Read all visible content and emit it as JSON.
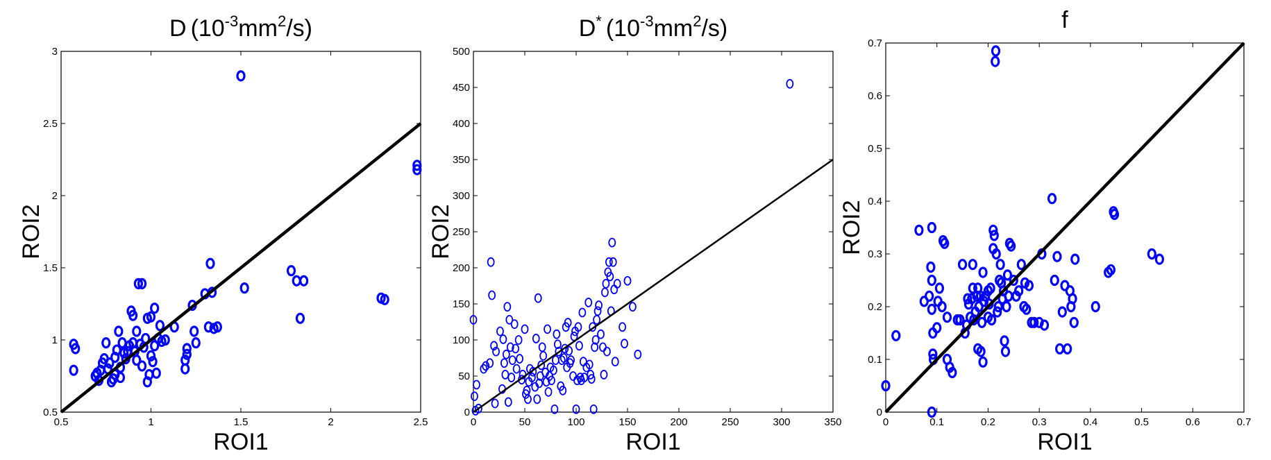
{
  "colors": {
    "points": "#0000ff",
    "line": "#000000"
  },
  "chart_data": [
    {
      "type": "scatter",
      "title": {
        "main": "D",
        "pre": "(10",
        "sup1": "-3",
        "mid": "mm",
        "sup2": "2",
        "post": "/s)"
      },
      "xlabel": "ROI1",
      "ylabel": "ROI2",
      "xlim": [
        0.5,
        2.5
      ],
      "ylim": [
        0.5,
        3
      ],
      "xticks": [
        "0.5",
        "1",
        "1.5",
        "2",
        "2.5"
      ],
      "xtick_values": [
        0.5,
        1,
        1.5,
        2,
        2.5
      ],
      "yticks": [
        "0.5",
        "1",
        "1.5",
        "2",
        "2.5",
        "3"
      ],
      "ytick_values": [
        0.5,
        1,
        1.5,
        2,
        2.5,
        3
      ],
      "identity_line": [
        [
          0.5,
          0.5
        ],
        [
          2.5,
          2.5
        ]
      ],
      "marker": "bold-circle",
      "points": [
        [
          0.57,
          0.97
        ],
        [
          0.58,
          0.94
        ],
        [
          0.57,
          0.79
        ],
        [
          0.69,
          0.75
        ],
        [
          0.7,
          0.77
        ],
        [
          0.71,
          0.72
        ],
        [
          0.72,
          0.79
        ],
        [
          0.73,
          0.84
        ],
        [
          0.74,
          0.87
        ],
        [
          0.75,
          0.98
        ],
        [
          0.76,
          0.8
        ],
        [
          0.77,
          0.84
        ],
        [
          0.78,
          0.71
        ],
        [
          0.79,
          0.73
        ],
        [
          0.8,
          0.76
        ],
        [
          0.8,
          0.88
        ],
        [
          0.81,
          0.93
        ],
        [
          0.82,
          1.06
        ],
        [
          0.83,
          0.81
        ],
        [
          0.83,
          0.74
        ],
        [
          0.84,
          0.98
        ],
        [
          0.85,
          0.91
        ],
        [
          0.86,
          0.87
        ],
        [
          0.87,
          0.92
        ],
        [
          0.88,
          0.96
        ],
        [
          0.89,
          1.2
        ],
        [
          0.9,
          1.17
        ],
        [
          0.9,
          0.98
        ],
        [
          0.91,
          0.92
        ],
        [
          0.92,
          1.06
        ],
        [
          0.92,
          0.86
        ],
        [
          0.93,
          1.39
        ],
        [
          0.94,
          0.97
        ],
        [
          0.95,
          1.39
        ],
        [
          0.95,
          0.82
        ],
        [
          0.96,
          0.95
        ],
        [
          0.97,
          1.01
        ],
        [
          0.98,
          1.15
        ],
        [
          0.98,
          0.71
        ],
        [
          0.99,
          0.76
        ],
        [
          1.0,
          1.16
        ],
        [
          1.0,
          0.89
        ],
        [
          1.01,
          0.85
        ],
        [
          1.02,
          0.96
        ],
        [
          1.02,
          1.22
        ],
        [
          1.03,
          0.77
        ],
        [
          1.04,
          1.01
        ],
        [
          1.05,
          1.1
        ],
        [
          1.06,
          0.99
        ],
        [
          1.08,
          1.0
        ],
        [
          1.13,
          1.09
        ],
        [
          1.19,
          0.8
        ],
        [
          1.19,
          0.86
        ],
        [
          1.2,
          0.94
        ],
        [
          1.2,
          0.9
        ],
        [
          1.23,
          1.24
        ],
        [
          1.24,
          1.06
        ],
        [
          1.25,
          0.98
        ],
        [
          1.3,
          1.32
        ],
        [
          1.32,
          1.09
        ],
        [
          1.33,
          1.53
        ],
        [
          1.34,
          1.33
        ],
        [
          1.35,
          1.08
        ],
        [
          1.37,
          1.09
        ],
        [
          1.5,
          2.83
        ],
        [
          1.52,
          1.36
        ],
        [
          1.78,
          1.48
        ],
        [
          1.81,
          1.41
        ],
        [
          1.83,
          1.15
        ],
        [
          1.85,
          1.41
        ],
        [
          2.28,
          1.29
        ],
        [
          2.3,
          1.28
        ],
        [
          2.48,
          2.21
        ],
        [
          2.48,
          2.18
        ]
      ]
    },
    {
      "type": "scatter",
      "title": {
        "main": "D",
        "star": "*",
        "pre": "(10",
        "sup1": "-3",
        "mid": "mm",
        "sup2": "2",
        "post": "/s)"
      },
      "xlabel": "ROI1",
      "ylabel": "ROI2",
      "xlim": [
        0,
        350
      ],
      "ylim": [
        0,
        500
      ],
      "xticks": [
        "0",
        "50",
        "100",
        "150",
        "200",
        "250",
        "300",
        "350"
      ],
      "xtick_values": [
        0,
        50,
        100,
        150,
        200,
        250,
        300,
        350
      ],
      "yticks": [
        "0",
        "50",
        "100",
        "150",
        "200",
        "250",
        "300",
        "350",
        "400",
        "450",
        "500"
      ],
      "ytick_values": [
        0,
        50,
        100,
        150,
        200,
        250,
        300,
        350,
        400,
        450,
        500
      ],
      "identity_line": [
        [
          0,
          0
        ],
        [
          350,
          350
        ]
      ],
      "marker": "thin-circle",
      "points": [
        [
          0,
          128
        ],
        [
          1,
          22
        ],
        [
          2,
          2
        ],
        [
          3,
          38
        ],
        [
          5,
          5
        ],
        [
          10,
          60
        ],
        [
          12,
          64
        ],
        [
          16,
          68
        ],
        [
          17,
          208
        ],
        [
          18,
          162
        ],
        [
          20,
          92
        ],
        [
          21,
          12
        ],
        [
          22,
          84
        ],
        [
          26,
          112
        ],
        [
          28,
          32
        ],
        [
          29,
          101
        ],
        [
          30,
          68
        ],
        [
          31,
          52
        ],
        [
          32,
          80
        ],
        [
          33,
          146
        ],
        [
          34,
          14
        ],
        [
          35,
          128
        ],
        [
          36,
          90
        ],
        [
          37,
          48
        ],
        [
          38,
          72
        ],
        [
          40,
          122
        ],
        [
          41,
          88
        ],
        [
          42,
          60
        ],
        [
          44,
          100
        ],
        [
          45,
          74
        ],
        [
          47,
          45
        ],
        [
          48,
          52
        ],
        [
          50,
          115
        ],
        [
          51,
          25
        ],
        [
          52,
          30
        ],
        [
          53,
          18
        ],
        [
          54,
          42
        ],
        [
          55,
          60
        ],
        [
          57,
          48
        ],
        [
          58,
          56
        ],
        [
          60,
          35
        ],
        [
          61,
          102
        ],
        [
          62,
          18
        ],
        [
          63,
          158
        ],
        [
          64,
          40
        ],
        [
          65,
          50
        ],
        [
          66,
          65
        ],
        [
          67,
          90
        ],
        [
          68,
          78
        ],
        [
          70,
          55
        ],
        [
          71,
          42
        ],
        [
          72,
          115
        ],
        [
          73,
          28
        ],
        [
          74,
          50
        ],
        [
          75,
          62
        ],
        [
          76,
          44
        ],
        [
          78,
          58
        ],
        [
          79,
          4
        ],
        [
          80,
          72
        ],
        [
          81,
          108
        ],
        [
          82,
          94
        ],
        [
          83,
          84
        ],
        [
          85,
          36
        ],
        [
          86,
          72
        ],
        [
          87,
          30
        ],
        [
          88,
          75
        ],
        [
          89,
          88
        ],
        [
          90,
          118
        ],
        [
          91,
          62
        ],
        [
          92,
          124
        ],
        [
          93,
          85
        ],
        [
          94,
          68
        ],
        [
          95,
          72
        ],
        [
          97,
          50
        ],
        [
          98,
          105
        ],
        [
          99,
          112
        ],
        [
          100,
          4
        ],
        [
          101,
          44
        ],
        [
          102,
          118
        ],
        [
          103,
          92
        ],
        [
          104,
          48
        ],
        [
          105,
          44
        ],
        [
          106,
          138
        ],
        [
          107,
          70
        ],
        [
          108,
          48
        ],
        [
          110,
          62
        ],
        [
          112,
          152
        ],
        [
          113,
          66
        ],
        [
          114,
          52
        ],
        [
          115,
          46
        ],
        [
          116,
          118
        ],
        [
          117,
          4
        ],
        [
          118,
          90
        ],
        [
          119,
          100
        ],
        [
          120,
          128
        ],
        [
          121,
          140
        ],
        [
          122,
          148
        ],
        [
          124,
          108
        ],
        [
          126,
          90
        ],
        [
          127,
          52
        ],
        [
          128,
          166
        ],
        [
          129,
          178
        ],
        [
          130,
          84
        ],
        [
          131,
          194
        ],
        [
          132,
          208
        ],
        [
          133,
          188
        ],
        [
          134,
          140
        ],
        [
          135,
          235
        ],
        [
          136,
          208
        ],
        [
          137,
          170
        ],
        [
          138,
          70
        ],
        [
          140,
          178
        ],
        [
          145,
          118
        ],
        [
          147,
          95
        ],
        [
          150,
          182
        ],
        [
          155,
          146
        ],
        [
          160,
          80
        ],
        [
          308,
          455
        ]
      ]
    },
    {
      "type": "scatter",
      "title": {
        "main": "f"
      },
      "xlabel": "ROI1",
      "ylabel": "ROI2",
      "xlim": [
        0,
        0.7
      ],
      "ylim": [
        0,
        0.7
      ],
      "xticks": [
        "0",
        "0.1",
        "0.2",
        "0.3",
        "0.4",
        "0.5",
        "0.6",
        "0.7"
      ],
      "xtick_values": [
        0,
        0.1,
        0.2,
        0.3,
        0.4,
        0.5,
        0.6,
        0.7
      ],
      "yticks": [
        "0",
        "0.1",
        "0.2",
        "0.3",
        "0.4",
        "0.5",
        "0.6",
        "0.7"
      ],
      "ytick_values": [
        0,
        0.1,
        0.2,
        0.3,
        0.4,
        0.5,
        0.6,
        0.7
      ],
      "identity_line": [
        [
          0,
          0
        ],
        [
          0.7,
          0.7
        ]
      ],
      "marker": "bold-circle",
      "points": [
        [
          0.0,
          0.05
        ],
        [
          0.02,
          0.145
        ],
        [
          0.065,
          0.345
        ],
        [
          0.075,
          0.21
        ],
        [
          0.085,
          0.22
        ],
        [
          0.088,
          0.275
        ],
        [
          0.09,
          0.35
        ],
        [
          0.09,
          0.25
        ],
        [
          0.09,
          0.195
        ],
        [
          0.092,
          0.15
        ],
        [
          0.092,
          0.11
        ],
        [
          0.093,
          0.1
        ],
        [
          0.09,
          0.0
        ],
        [
          0.1,
          0.16
        ],
        [
          0.102,
          0.21
        ],
        [
          0.105,
          0.235
        ],
        [
          0.11,
          0.2
        ],
        [
          0.112,
          0.325
        ],
        [
          0.115,
          0.32
        ],
        [
          0.12,
          0.18
        ],
        [
          0.12,
          0.1
        ],
        [
          0.125,
          0.085
        ],
        [
          0.13,
          0.075
        ],
        [
          0.14,
          0.175
        ],
        [
          0.145,
          0.175
        ],
        [
          0.15,
          0.28
        ],
        [
          0.155,
          0.15
        ],
        [
          0.158,
          0.165
        ],
        [
          0.16,
          0.215
        ],
        [
          0.162,
          0.205
        ],
        [
          0.165,
          0.18
        ],
        [
          0.168,
          0.215
        ],
        [
          0.17,
          0.28
        ],
        [
          0.17,
          0.235
        ],
        [
          0.172,
          0.175
        ],
        [
          0.175,
          0.19
        ],
        [
          0.178,
          0.22
        ],
        [
          0.18,
          0.12
        ],
        [
          0.18,
          0.235
        ],
        [
          0.182,
          0.2
        ],
        [
          0.185,
          0.22
        ],
        [
          0.186,
          0.115
        ],
        [
          0.188,
          0.17
        ],
        [
          0.19,
          0.265
        ],
        [
          0.19,
          0.095
        ],
        [
          0.192,
          0.21
        ],
        [
          0.195,
          0.22
        ],
        [
          0.2,
          0.23
        ],
        [
          0.2,
          0.18
        ],
        [
          0.202,
          0.205
        ],
        [
          0.205,
          0.235
        ],
        [
          0.207,
          0.175
        ],
        [
          0.21,
          0.31
        ],
        [
          0.21,
          0.345
        ],
        [
          0.212,
          0.335
        ],
        [
          0.214,
          0.665
        ],
        [
          0.215,
          0.685
        ],
        [
          0.216,
          0.3
        ],
        [
          0.218,
          0.19
        ],
        [
          0.22,
          0.2
        ],
        [
          0.222,
          0.25
        ],
        [
          0.224,
          0.28
        ],
        [
          0.226,
          0.245
        ],
        [
          0.228,
          0.215
        ],
        [
          0.23,
          0.23
        ],
        [
          0.232,
          0.135
        ],
        [
          0.234,
          0.115
        ],
        [
          0.236,
          0.2
        ],
        [
          0.238,
          0.26
        ],
        [
          0.24,
          0.22
        ],
        [
          0.242,
          0.32
        ],
        [
          0.245,
          0.315
        ],
        [
          0.25,
          0.25
        ],
        [
          0.255,
          0.22
        ],
        [
          0.26,
          0.23
        ],
        [
          0.265,
          0.28
        ],
        [
          0.27,
          0.2
        ],
        [
          0.272,
          0.245
        ],
        [
          0.275,
          0.195
        ],
        [
          0.28,
          0.24
        ],
        [
          0.285,
          0.17
        ],
        [
          0.29,
          0.17
        ],
        [
          0.3,
          0.17
        ],
        [
          0.305,
          0.3
        ],
        [
          0.31,
          0.165
        ],
        [
          0.325,
          0.405
        ],
        [
          0.33,
          0.25
        ],
        [
          0.335,
          0.295
        ],
        [
          0.34,
          0.12
        ],
        [
          0.345,
          0.19
        ],
        [
          0.35,
          0.24
        ],
        [
          0.355,
          0.12
        ],
        [
          0.36,
          0.23
        ],
        [
          0.362,
          0.2
        ],
        [
          0.365,
          0.215
        ],
        [
          0.368,
          0.17
        ],
        [
          0.37,
          0.29
        ],
        [
          0.41,
          0.2
        ],
        [
          0.435,
          0.265
        ],
        [
          0.44,
          0.27
        ],
        [
          0.445,
          0.38
        ],
        [
          0.447,
          0.375
        ],
        [
          0.52,
          0.3
        ],
        [
          0.535,
          0.29
        ]
      ]
    }
  ]
}
